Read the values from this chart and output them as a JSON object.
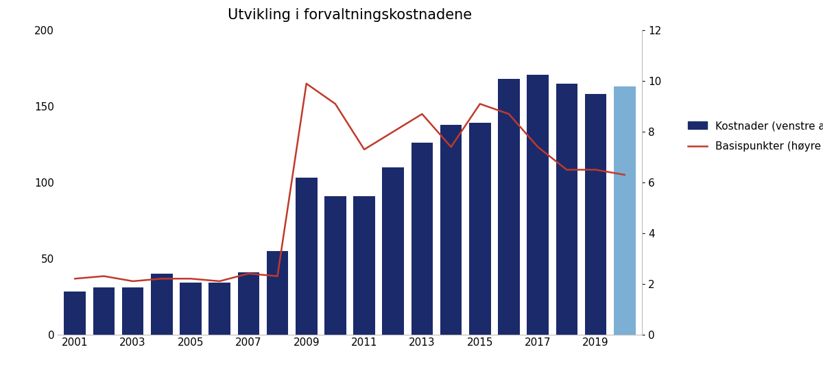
{
  "title": "Utvikling i forvaltningskostnadene",
  "years": [
    2001,
    2002,
    2003,
    2004,
    2005,
    2006,
    2007,
    2008,
    2009,
    2010,
    2011,
    2012,
    2013,
    2014,
    2015,
    2016,
    2017,
    2018,
    2019,
    2020
  ],
  "costs": [
    28,
    31,
    31,
    40,
    34,
    34,
    41,
    55,
    103,
    91,
    91,
    110,
    126,
    138,
    139,
    168,
    171,
    165,
    158,
    163
  ],
  "last_bar_color": "#7bafd4",
  "bar_color": "#1b2a6b",
  "basis_points": [
    2.2,
    2.3,
    2.1,
    2.2,
    2.2,
    2.1,
    2.4,
    2.3,
    9.9,
    9.1,
    7.3,
    8.0,
    8.7,
    7.4,
    9.1,
    8.7,
    7.4,
    6.5,
    6.5,
    6.3
  ],
  "line_color": "#c0392b",
  "ylim_left": [
    0,
    200
  ],
  "ylim_right": [
    0,
    12
  ],
  "yticks_left": [
    0,
    50,
    100,
    150,
    200
  ],
  "yticks_right": [
    0,
    2,
    4,
    6,
    8,
    10,
    12
  ],
  "legend_label_bar": "Kostnader (venstre akse)",
  "legend_label_line": "Basispunkter (høyre akse)",
  "background_color": "#ffffff",
  "title_fontsize": 15,
  "tick_fontsize": 11,
  "legend_fontsize": 11
}
